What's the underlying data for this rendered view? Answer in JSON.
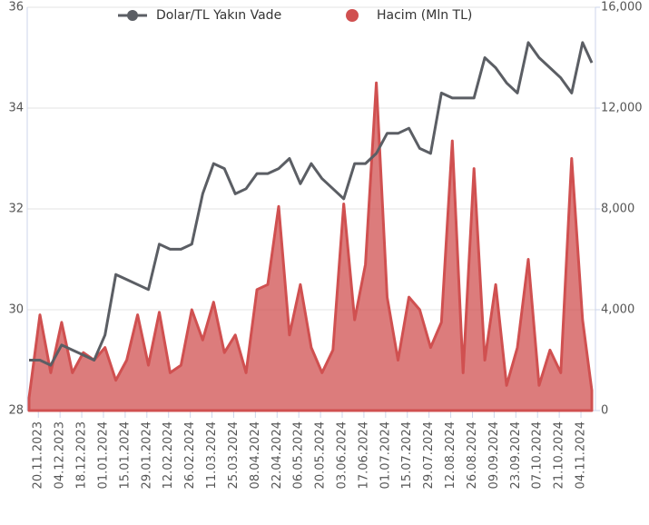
{
  "chart_data": {
    "type": "line",
    "x": [
      "14.11.2023",
      "21.11.2023",
      "28.11.2023",
      "05.12.2023",
      "12.12.2023",
      "19.12.2023",
      "26.12.2023",
      "02.01.2024",
      "09.01.2024",
      "16.01.2024",
      "23.01.2024",
      "30.01.2024",
      "06.02.2024",
      "13.02.2024",
      "20.02.2024",
      "27.02.2024",
      "05.03.2024",
      "12.03.2024",
      "19.03.2024",
      "26.03.2024",
      "02.04.2024",
      "09.04.2024",
      "16.04.2024",
      "23.04.2024",
      "30.04.2024",
      "07.05.2024",
      "14.05.2024",
      "21.05.2024",
      "28.05.2024",
      "04.06.2024",
      "11.06.2024",
      "18.06.2024",
      "25.06.2024",
      "02.07.2024",
      "09.07.2024",
      "16.07.2024",
      "23.07.2024",
      "30.07.2024",
      "06.08.2024",
      "13.08.2024",
      "20.08.2024",
      "27.08.2024",
      "03.09.2024",
      "10.09.2024",
      "17.09.2024",
      "24.09.2024",
      "01.10.2024",
      "08.10.2024",
      "15.10.2024",
      "22.10.2024",
      "29.10.2024",
      "05.11.2024",
      "11.11.2024"
    ],
    "xlim": [
      "14.11.2023",
      "11.11.2024"
    ],
    "xticks": [
      "20.11.2023",
      "04.12.2023",
      "18.12.2023",
      "01.01.2024",
      "15.01.2024",
      "29.01.2024",
      "12.02.2024",
      "26.02.2024",
      "11.03.2024",
      "25.03.2024",
      "08.04.2024",
      "22.04.2024",
      "06.05.2024",
      "20.05.2024",
      "03.06.2024",
      "17.06.2024",
      "01.07.2024",
      "15.07.2024",
      "29.07.2024",
      "12.08.2024",
      "26.08.2024",
      "09.09.2024",
      "23.09.2024",
      "07.10.2024",
      "21.10.2024",
      "04.11.2024"
    ],
    "ylim": [
      28,
      36
    ],
    "yticks": [
      28,
      30,
      32,
      34,
      36
    ],
    "y2lim": [
      0,
      16000
    ],
    "y2ticks": [
      0,
      {
        "value": 4000,
        "label": "4,000"
      },
      {
        "value": 8000,
        "label": "8,000"
      },
      {
        "value": 12000,
        "label": "12,000"
      },
      {
        "value": 16000,
        "label": "16,000"
      }
    ],
    "grid": true,
    "legend": "top",
    "series": [
      {
        "name": "Dolar/TL Yakın Vade",
        "color": "#5b5e64",
        "values": [
          29.0,
          29.0,
          28.9,
          29.3,
          29.2,
          29.1,
          29.0,
          29.5,
          30.7,
          30.6,
          30.5,
          30.4,
          31.3,
          31.2,
          31.2,
          31.3,
          32.3,
          32.9,
          32.8,
          32.3,
          32.4,
          32.7,
          32.7,
          32.8,
          33.0,
          32.5,
          32.9,
          32.6,
          32.4,
          32.2,
          32.9,
          32.9,
          33.1,
          33.5,
          33.5,
          33.6,
          33.2,
          33.1,
          34.3,
          34.2,
          34.2,
          34.2,
          35.0,
          34.8,
          34.5,
          34.3,
          35.3,
          35.0,
          34.8,
          34.6,
          34.3,
          35.3,
          34.9
        ]
      },
      {
        "name": "Hacim (Mln TL)",
        "color": "#d05050",
        "axis": "y2",
        "values": [
          500,
          3800,
          1500,
          3500,
          1500,
          2300,
          2000,
          2500,
          1200,
          2000,
          3800,
          1800,
          3900,
          1500,
          1800,
          4000,
          2800,
          4300,
          2300,
          3000,
          1500,
          4800,
          5000,
          8100,
          3000,
          5000,
          2500,
          1500,
          2400,
          8200,
          3600,
          5800,
          13000,
          4500,
          2000,
          4500,
          4000,
          2500,
          3500,
          10700,
          1500,
          9600,
          2000,
          5000,
          1000,
          2500,
          6000,
          1000,
          2400,
          1500,
          10000,
          3600,
          800
        ]
      }
    ]
  }
}
